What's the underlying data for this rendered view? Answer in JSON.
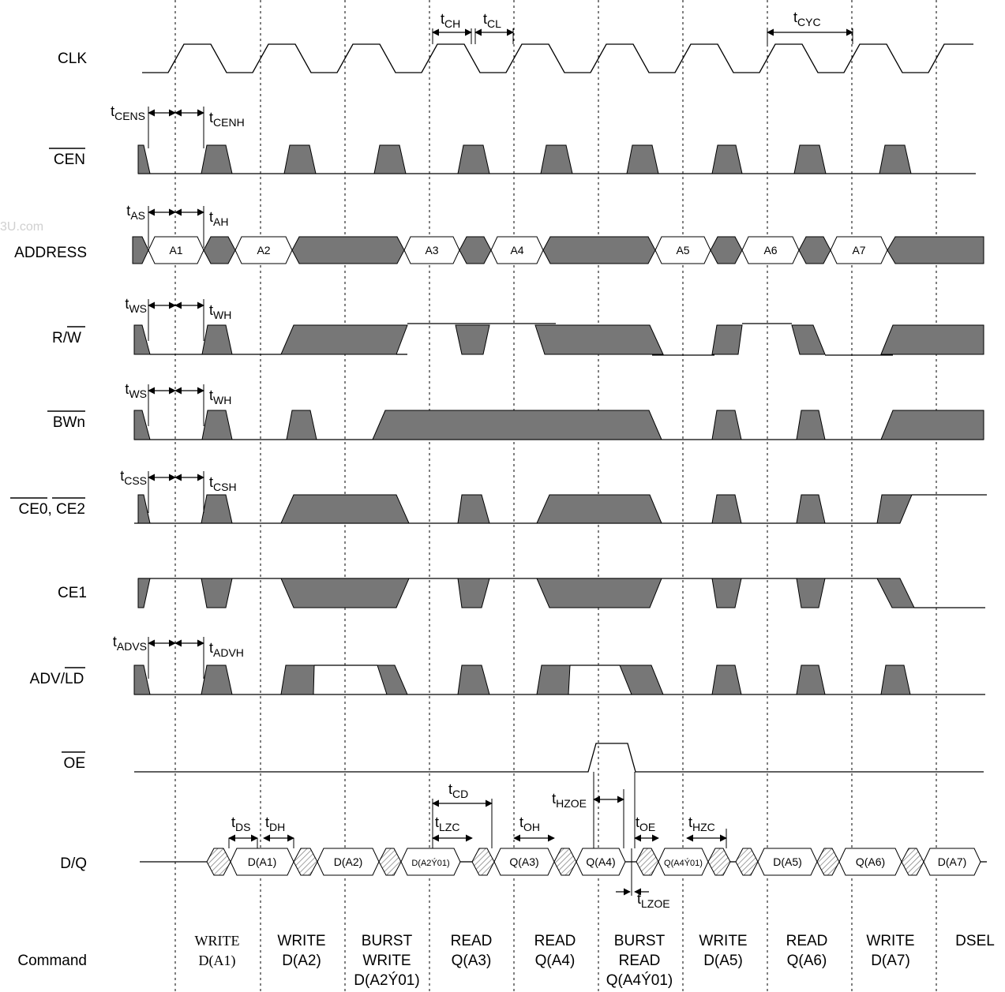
{
  "watermark": "3U.com",
  "signals": [
    {
      "id": "clk",
      "label": "CLK",
      "overbar": ""
    },
    {
      "id": "cen",
      "label": "",
      "overbar": "CEN"
    },
    {
      "id": "addr",
      "label": "ADDRESS",
      "overbar": ""
    },
    {
      "id": "rw",
      "label": "R/",
      "overbar": "W"
    },
    {
      "id": "bwn",
      "label": "",
      "overbar": "BWn"
    },
    {
      "id": "ce02",
      "label": "",
      "overbar": "CE0, CE2"
    },
    {
      "id": "ce1",
      "label": "CE1",
      "overbar": ""
    },
    {
      "id": "adv",
      "label": "ADV/",
      "overbar": "LD"
    },
    {
      "id": "oe",
      "label": "",
      "overbar": "OE"
    },
    {
      "id": "dq",
      "label": "D/Q",
      "overbar": ""
    },
    {
      "id": "cmd",
      "label": "Command",
      "overbar": ""
    }
  ],
  "address_values": [
    "A1",
    "A2",
    "A3",
    "A4",
    "A5",
    "A6",
    "A7"
  ],
  "dq_values": [
    "D(A1)",
    "D(A2)",
    "D(A2Ý01)",
    "Q(A3)",
    "Q(A4)",
    "Q(A4Ý01)",
    "D(A5)",
    "Q(A6)",
    "D(A7)"
  ],
  "timing": {
    "tCH": {
      "t": "t",
      "sub": "CH"
    },
    "tCL": {
      "t": "t",
      "sub": "CL"
    },
    "tCYC": {
      "t": "t",
      "sub": "CYC"
    },
    "tCENS": {
      "t": "t",
      "sub": "CENS"
    },
    "tCENH": {
      "t": "t",
      "sub": "CENH"
    },
    "tAS": {
      "t": "t",
      "sub": "AS"
    },
    "tAH": {
      "t": "t",
      "sub": "AH"
    },
    "tWS1": {
      "t": "t",
      "sub": "WS"
    },
    "tWH1": {
      "t": "t",
      "sub": "WH"
    },
    "tWS2": {
      "t": "t",
      "sub": "WS"
    },
    "tWH2": {
      "t": "t",
      "sub": "WH"
    },
    "tCSS": {
      "t": "t",
      "sub": "CSS"
    },
    "tCSH": {
      "t": "t",
      "sub": "CSH"
    },
    "tADVS": {
      "t": "t",
      "sub": "ADVS"
    },
    "tADVH": {
      "t": "t",
      "sub": "ADVH"
    },
    "tCD": {
      "t": "t",
      "sub": "CD"
    },
    "tLZC": {
      "t": "t",
      "sub": "LZC"
    },
    "tOH": {
      "t": "t",
      "sub": "OH"
    },
    "tHZOE": {
      "t": "t",
      "sub": "HZOE"
    },
    "tOE": {
      "t": "t",
      "sub": "OE"
    },
    "tHZC": {
      "t": "t",
      "sub": "HZC"
    },
    "tDS": {
      "t": "t",
      "sub": "DS"
    },
    "tDH": {
      "t": "t",
      "sub": "DH"
    },
    "tLZOE": {
      "t": "t",
      "sub": "LZOE"
    }
  },
  "commands": [
    [
      "WRITE",
      "D(A1)"
    ],
    [
      "WRITE",
      "D(A2)"
    ],
    [
      "BURST",
      "WRITE",
      "D(A2Ý01)"
    ],
    [
      "READ",
      "Q(A3)"
    ],
    [
      "READ",
      "Q(A4)"
    ],
    [
      "BURST",
      "READ",
      "Q(A4Ý01)"
    ],
    [
      "WRITE",
      "D(A5)"
    ],
    [
      "READ",
      "Q(A6)"
    ],
    [
      "WRITE",
      "D(A7)"
    ],
    [
      "DSEL"
    ]
  ]
}
